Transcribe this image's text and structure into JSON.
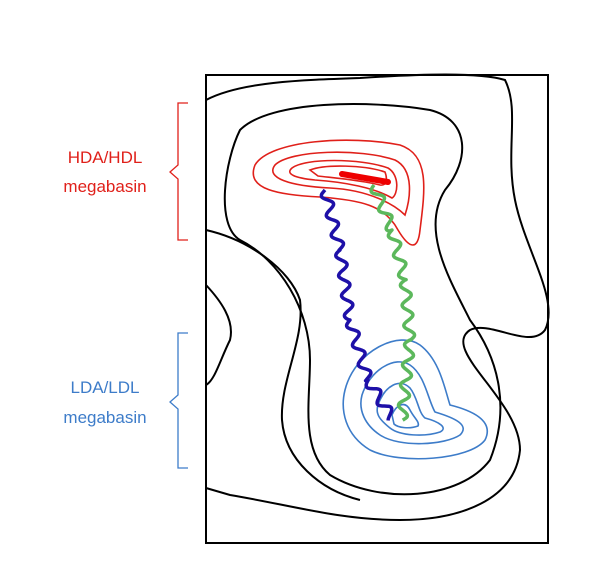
{
  "labels": [
    {
      "lines": [
        "HDA/HDL",
        "megabasin"
      ]
    },
    {
      "lines": [
        "LDA/LDL",
        "megabasin"
      ]
    }
  ]
}
